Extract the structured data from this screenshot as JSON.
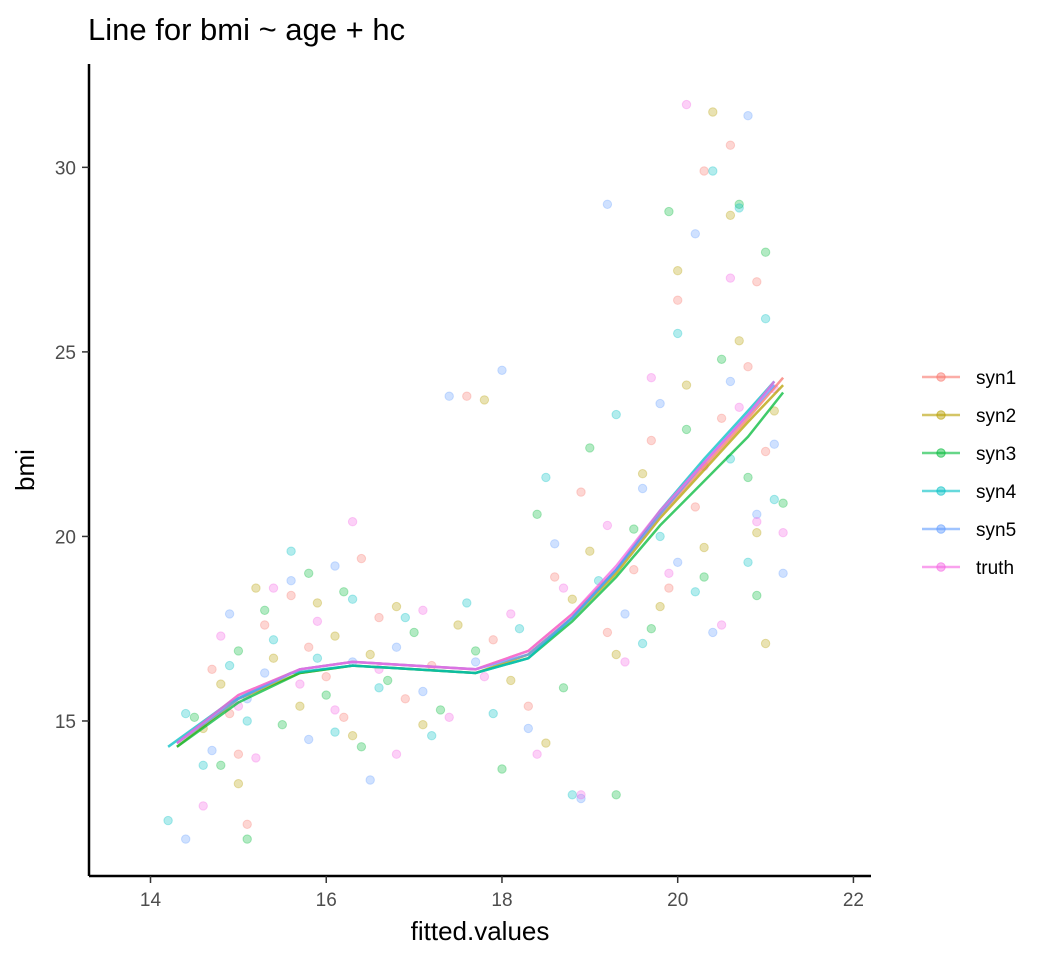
{
  "chart_data": {
    "type": "scatter",
    "title": "Line for bmi ~ age + hc",
    "xlabel": "fitted.values",
    "ylabel": "bmi",
    "xlim": [
      13.3,
      22.2
    ],
    "ylim": [
      10.8,
      32.8
    ],
    "x_ticks": [
      14,
      16,
      18,
      20,
      22
    ],
    "y_ticks": [
      15,
      20,
      25,
      30
    ],
    "grid": false,
    "legend_position": "right",
    "point_alpha": 0.3,
    "series": [
      {
        "name": "syn1",
        "color": "#F8766D",
        "points": [
          [
            14.7,
            16.4
          ],
          [
            14.9,
            15.2
          ],
          [
            15.0,
            14.1
          ],
          [
            15.1,
            12.2
          ],
          [
            15.3,
            17.6
          ],
          [
            15.6,
            18.4
          ],
          [
            15.8,
            17.0
          ],
          [
            16.0,
            16.2
          ],
          [
            16.2,
            15.1
          ],
          [
            16.4,
            19.4
          ],
          [
            16.6,
            17.8
          ],
          [
            16.9,
            15.6
          ],
          [
            17.2,
            16.5
          ],
          [
            17.6,
            23.8
          ],
          [
            17.9,
            17.2
          ],
          [
            18.3,
            15.4
          ],
          [
            18.6,
            18.9
          ],
          [
            18.9,
            21.2
          ],
          [
            19.2,
            17.4
          ],
          [
            19.5,
            19.1
          ],
          [
            19.7,
            22.6
          ],
          [
            19.9,
            18.6
          ],
          [
            20.0,
            26.4
          ],
          [
            20.2,
            20.8
          ],
          [
            20.3,
            29.9
          ],
          [
            20.5,
            23.2
          ],
          [
            20.6,
            30.6
          ],
          [
            20.8,
            24.6
          ],
          [
            20.9,
            26.9
          ],
          [
            21.0,
            22.3
          ]
        ],
        "line": [
          [
            14.3,
            14.4
          ],
          [
            15.0,
            15.7
          ],
          [
            15.7,
            16.4
          ],
          [
            16.3,
            16.6
          ],
          [
            17.0,
            16.5
          ],
          [
            17.7,
            16.4
          ],
          [
            18.3,
            16.9
          ],
          [
            18.8,
            17.9
          ],
          [
            19.3,
            19.1
          ],
          [
            19.8,
            20.6
          ],
          [
            20.3,
            21.9
          ],
          [
            20.8,
            23.2
          ],
          [
            21.2,
            24.3
          ]
        ]
      },
      {
        "name": "syn2",
        "color": "#B79F00",
        "points": [
          [
            14.6,
            14.8
          ],
          [
            14.8,
            16.0
          ],
          [
            15.0,
            13.3
          ],
          [
            15.2,
            18.6
          ],
          [
            15.4,
            16.7
          ],
          [
            15.7,
            15.4
          ],
          [
            15.9,
            18.2
          ],
          [
            16.1,
            17.3
          ],
          [
            16.3,
            14.6
          ],
          [
            16.5,
            16.8
          ],
          [
            16.8,
            18.1
          ],
          [
            17.1,
            14.9
          ],
          [
            17.5,
            17.6
          ],
          [
            17.8,
            23.7
          ],
          [
            18.1,
            16.1
          ],
          [
            18.5,
            14.4
          ],
          [
            18.8,
            18.3
          ],
          [
            19.0,
            19.6
          ],
          [
            19.3,
            16.8
          ],
          [
            19.6,
            21.7
          ],
          [
            19.8,
            18.1
          ],
          [
            20.0,
            27.2
          ],
          [
            20.1,
            24.1
          ],
          [
            20.3,
            19.7
          ],
          [
            20.4,
            31.5
          ],
          [
            20.6,
            28.7
          ],
          [
            20.7,
            25.3
          ],
          [
            20.9,
            20.1
          ],
          [
            21.0,
            17.1
          ],
          [
            21.1,
            23.4
          ]
        ],
        "line": [
          [
            14.3,
            14.3
          ],
          [
            15.0,
            15.6
          ],
          [
            15.7,
            16.3
          ],
          [
            16.3,
            16.5
          ],
          [
            17.0,
            16.4
          ],
          [
            17.7,
            16.3
          ],
          [
            18.3,
            16.8
          ],
          [
            18.8,
            17.8
          ],
          [
            19.3,
            19.0
          ],
          [
            19.8,
            20.5
          ],
          [
            20.3,
            21.8
          ],
          [
            20.8,
            23.1
          ],
          [
            21.2,
            24.1
          ]
        ]
      },
      {
        "name": "syn3",
        "color": "#00BA38",
        "points": [
          [
            14.5,
            15.1
          ],
          [
            14.8,
            13.8
          ],
          [
            15.0,
            16.9
          ],
          [
            15.1,
            11.8
          ],
          [
            15.3,
            18.0
          ],
          [
            15.5,
            14.9
          ],
          [
            15.8,
            19.0
          ],
          [
            16.0,
            15.7
          ],
          [
            16.2,
            18.5
          ],
          [
            16.4,
            14.3
          ],
          [
            16.7,
            16.1
          ],
          [
            17.0,
            17.4
          ],
          [
            17.3,
            15.3
          ],
          [
            17.7,
            16.9
          ],
          [
            18.0,
            13.7
          ],
          [
            18.4,
            20.6
          ],
          [
            18.7,
            15.9
          ],
          [
            19.0,
            22.4
          ],
          [
            19.3,
            13.0
          ],
          [
            19.5,
            20.2
          ],
          [
            19.7,
            17.5
          ],
          [
            19.9,
            28.8
          ],
          [
            20.1,
            22.9
          ],
          [
            20.3,
            18.9
          ],
          [
            20.5,
            24.8
          ],
          [
            20.7,
            29.0
          ],
          [
            20.8,
            21.6
          ],
          [
            20.9,
            18.4
          ],
          [
            21.0,
            27.7
          ],
          [
            21.2,
            20.9
          ]
        ],
        "line": [
          [
            14.3,
            14.3
          ],
          [
            15.0,
            15.5
          ],
          [
            15.7,
            16.3
          ],
          [
            16.3,
            16.5
          ],
          [
            17.0,
            16.4
          ],
          [
            17.7,
            16.3
          ],
          [
            18.3,
            16.7
          ],
          [
            18.8,
            17.7
          ],
          [
            19.3,
            18.9
          ],
          [
            19.8,
            20.3
          ],
          [
            20.3,
            21.5
          ],
          [
            20.8,
            22.7
          ],
          [
            21.2,
            23.9
          ]
        ]
      },
      {
        "name": "syn4",
        "color": "#00BFC4",
        "points": [
          [
            14.2,
            12.3
          ],
          [
            14.4,
            15.2
          ],
          [
            14.6,
            13.8
          ],
          [
            14.9,
            16.5
          ],
          [
            15.1,
            15.0
          ],
          [
            15.4,
            17.2
          ],
          [
            15.6,
            19.6
          ],
          [
            15.9,
            16.7
          ],
          [
            16.1,
            14.7
          ],
          [
            16.3,
            18.3
          ],
          [
            16.6,
            15.9
          ],
          [
            16.9,
            17.8
          ],
          [
            17.2,
            14.6
          ],
          [
            17.6,
            18.2
          ],
          [
            17.9,
            15.2
          ],
          [
            18.2,
            17.5
          ],
          [
            18.5,
            21.6
          ],
          [
            18.8,
            13.0
          ],
          [
            19.1,
            18.8
          ],
          [
            19.3,
            23.3
          ],
          [
            19.6,
            17.1
          ],
          [
            19.8,
            20.0
          ],
          [
            20.0,
            25.5
          ],
          [
            20.2,
            18.5
          ],
          [
            20.4,
            29.9
          ],
          [
            20.6,
            22.1
          ],
          [
            20.7,
            28.9
          ],
          [
            20.8,
            19.3
          ],
          [
            21.0,
            25.9
          ],
          [
            21.1,
            21.0
          ]
        ],
        "line": [
          [
            14.2,
            14.3
          ],
          [
            14.9,
            15.5
          ],
          [
            15.6,
            16.3
          ],
          [
            16.3,
            16.5
          ],
          [
            17.0,
            16.4
          ],
          [
            17.7,
            16.3
          ],
          [
            18.3,
            16.7
          ],
          [
            18.8,
            17.8
          ],
          [
            19.3,
            19.1
          ],
          [
            19.8,
            20.7
          ],
          [
            20.3,
            22.1
          ],
          [
            20.8,
            23.4
          ],
          [
            21.1,
            24.2
          ]
        ]
      },
      {
        "name": "syn5",
        "color": "#619CFF",
        "points": [
          [
            14.4,
            11.8
          ],
          [
            14.7,
            14.2
          ],
          [
            14.9,
            17.9
          ],
          [
            15.1,
            15.6
          ],
          [
            15.3,
            16.3
          ],
          [
            15.6,
            18.8
          ],
          [
            15.8,
            14.5
          ],
          [
            16.1,
            19.2
          ],
          [
            16.3,
            16.6
          ],
          [
            16.5,
            13.4
          ],
          [
            16.8,
            17.0
          ],
          [
            17.1,
            15.8
          ],
          [
            17.4,
            23.8
          ],
          [
            17.7,
            16.6
          ],
          [
            18.0,
            24.5
          ],
          [
            18.3,
            14.8
          ],
          [
            18.6,
            19.8
          ],
          [
            18.9,
            12.9
          ],
          [
            19.2,
            29.0
          ],
          [
            19.4,
            17.9
          ],
          [
            19.6,
            21.3
          ],
          [
            19.8,
            23.6
          ],
          [
            20.0,
            19.3
          ],
          [
            20.2,
            28.2
          ],
          [
            20.4,
            17.4
          ],
          [
            20.6,
            24.2
          ],
          [
            20.8,
            31.4
          ],
          [
            20.9,
            20.6
          ],
          [
            21.1,
            22.5
          ],
          [
            21.2,
            19.0
          ]
        ],
        "line": [
          [
            14.3,
            14.4
          ],
          [
            15.0,
            15.6
          ],
          [
            15.7,
            16.4
          ],
          [
            16.3,
            16.6
          ],
          [
            17.0,
            16.5
          ],
          [
            17.7,
            16.4
          ],
          [
            18.3,
            16.8
          ],
          [
            18.8,
            17.8
          ],
          [
            19.3,
            19.1
          ],
          [
            19.8,
            20.6
          ],
          [
            20.3,
            22.0
          ],
          [
            20.8,
            23.3
          ],
          [
            21.1,
            24.1
          ]
        ]
      },
      {
        "name": "truth",
        "color": "#F564E3",
        "points": [
          [
            14.6,
            12.7
          ],
          [
            14.8,
            17.3
          ],
          [
            15.0,
            15.4
          ],
          [
            15.2,
            14.0
          ],
          [
            15.4,
            18.6
          ],
          [
            15.7,
            16.0
          ],
          [
            15.9,
            17.7
          ],
          [
            16.1,
            15.3
          ],
          [
            16.3,
            20.4
          ],
          [
            16.6,
            16.4
          ],
          [
            16.8,
            14.1
          ],
          [
            17.1,
            18.0
          ],
          [
            17.4,
            15.1
          ],
          [
            17.8,
            16.2
          ],
          [
            18.1,
            17.9
          ],
          [
            18.4,
            14.1
          ],
          [
            18.7,
            18.6
          ],
          [
            18.9,
            13.0
          ],
          [
            19.2,
            20.3
          ],
          [
            19.4,
            16.6
          ],
          [
            19.7,
            24.3
          ],
          [
            19.9,
            19.0
          ],
          [
            20.1,
            31.7
          ],
          [
            20.3,
            21.9
          ],
          [
            20.5,
            17.6
          ],
          [
            20.6,
            27.0
          ],
          [
            20.7,
            23.5
          ],
          [
            20.9,
            20.4
          ],
          [
            21.1,
            24.0
          ],
          [
            21.2,
            20.1
          ]
        ],
        "line": [
          [
            14.3,
            14.4
          ],
          [
            15.0,
            15.7
          ],
          [
            15.7,
            16.4
          ],
          [
            16.3,
            16.6
          ],
          [
            17.0,
            16.5
          ],
          [
            17.7,
            16.4
          ],
          [
            18.3,
            16.9
          ],
          [
            18.8,
            17.9
          ],
          [
            19.3,
            19.2
          ],
          [
            19.8,
            20.7
          ],
          [
            20.3,
            22.0
          ],
          [
            20.8,
            23.3
          ],
          [
            21.1,
            24.2
          ]
        ]
      }
    ]
  }
}
